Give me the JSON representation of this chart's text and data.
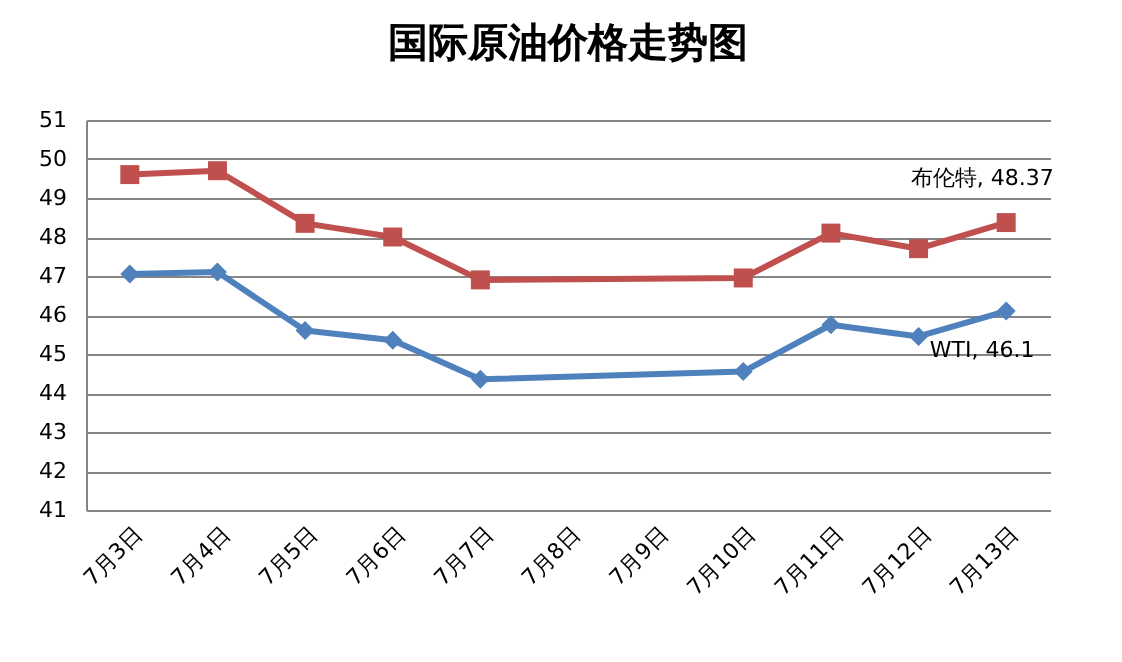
{
  "chart_data": {
    "type": "line",
    "title": "国际原油价格走势图",
    "categories": [
      "7月3日",
      "7月4日",
      "7月5日",
      "7月6日",
      "7月7日",
      "7月8日",
      "7月9日",
      "7月10日",
      "7月11日",
      "7月12日",
      "7月13日"
    ],
    "series": [
      {
        "color": "#c0504d",
        "marker": "square",
        "values": [
          49.6,
          49.7,
          48.35,
          48.0,
          46.9,
          null,
          null,
          46.95,
          48.1,
          47.7,
          48.37
        ],
        "value_labels": [
          null,
          null,
          null,
          null,
          null,
          null,
          null,
          null,
          null,
          null,
          "布伦特, 48.37"
        ]
      },
      {
        "color": "#4f81bd",
        "marker": "diamond",
        "values": [
          47.05,
          47.1,
          45.6,
          45.35,
          44.35,
          null,
          null,
          44.55,
          45.75,
          45.45,
          46.1
        ],
        "value_labels": [
          null,
          null,
          null,
          null,
          null,
          null,
          null,
          null,
          null,
          null,
          "WTI, 46.1"
        ]
      }
    ],
    "ylim": [
      41,
      51
    ],
    "yticks": [
      41,
      42,
      43,
      44,
      45,
      46,
      47,
      48,
      49,
      50,
      51
    ],
    "grid": "y",
    "legend": false
  }
}
